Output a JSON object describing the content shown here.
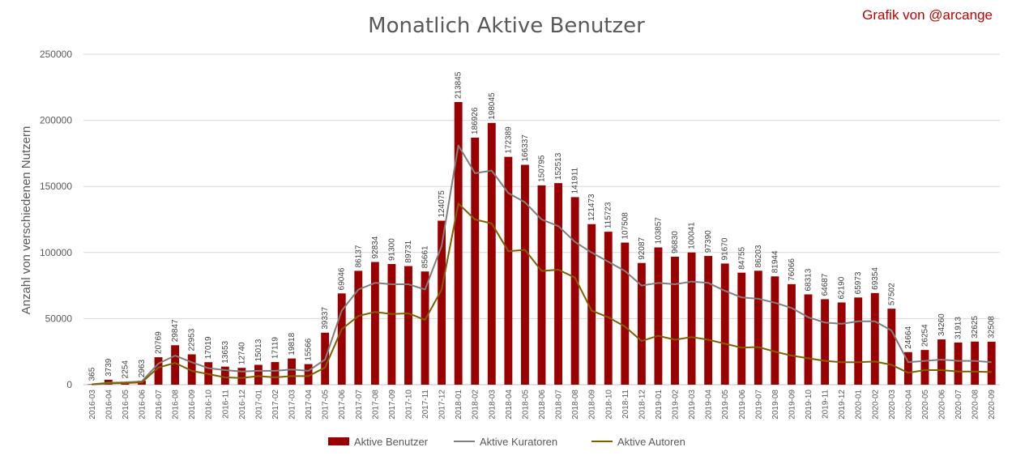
{
  "chart_data": {
    "type": "bar",
    "title": "Monatlich Aktive Benutzer",
    "credit": "Grafik von @arcange",
    "xlabel": "",
    "ylabel": "Anzahl von verschiedenen Nutzern",
    "ylim": [
      0,
      250000
    ],
    "yticks": [
      "0",
      "50000",
      "100000",
      "150000",
      "200000",
      "250000"
    ],
    "grid": true,
    "legend_position": "bottom",
    "categories": [
      "2016-03",
      "2016-04",
      "2016-05",
      "2016-06",
      "2016-07",
      "2016-08",
      "2016-09",
      "2016-10",
      "2016-11",
      "2016-12",
      "2017-01",
      "2017-02",
      "2017-03",
      "2017-04",
      "2017-05",
      "2017-06",
      "2017-07",
      "2017-08",
      "2017-09",
      "2017-10",
      "2017-11",
      "2017-12",
      "2018-01",
      "2018-02",
      "2018-03",
      "2018-04",
      "2018-05",
      "2018-06",
      "2018-07",
      "2018-08",
      "2018-09",
      "2018-10",
      "2018-11",
      "2018-12",
      "2019-01",
      "2019-02",
      "2019-03",
      "2019-04",
      "2019-05",
      "2019-06",
      "2019-07",
      "2019-08",
      "2019-09",
      "2019-10",
      "2019-11",
      "2019-12",
      "2020-01",
      "2020-02",
      "2020-03",
      "2020-04",
      "2020-05",
      "2020-06",
      "2020-07",
      "2020-08",
      "2020-09"
    ],
    "series": [
      {
        "name": "Aktive Benutzer",
        "kind": "bar",
        "color": "#9b0000",
        "values": [
          365,
          3739,
          2254,
          2963,
          20769,
          29847,
          22953,
          17019,
          13653,
          12740,
          15013,
          17119,
          19818,
          15566,
          39337,
          69046,
          86137,
          92834,
          91300,
          89731,
          85661,
          124075,
          213845,
          186926,
          198045,
          172389,
          166337,
          150795,
          152513,
          141911,
          121473,
          115723,
          107508,
          92087,
          103857,
          96830,
          100041,
          97390,
          91670,
          84755,
          86203,
          81944,
          76066,
          68313,
          64687,
          62190,
          65973,
          69354,
          57502,
          24664,
          26254,
          34260,
          31913,
          32625,
          32508
        ]
      },
      {
        "name": "Aktive Kuratoren",
        "kind": "line",
        "color": "#7f7f7f",
        "values": [
          300,
          1500,
          1800,
          2500,
          16000,
          22000,
          17000,
          12500,
          11000,
          10000,
          10500,
          10500,
          11500,
          10500,
          19000,
          56000,
          72000,
          77000,
          76000,
          76000,
          72000,
          105000,
          181000,
          160000,
          162000,
          145000,
          138000,
          125000,
          120000,
          108000,
          100000,
          93000,
          86000,
          75000,
          77000,
          76000,
          78000,
          77000,
          71000,
          66000,
          65000,
          62000,
          58000,
          51000,
          47000,
          46000,
          48000,
          48000,
          41000,
          17000,
          18000,
          19000,
          18000,
          18000,
          17000
        ]
      },
      {
        "name": "Aktive Autoren",
        "kind": "line",
        "color": "#7f6000",
        "values": [
          200,
          1000,
          1200,
          1800,
          13000,
          16500,
          10500,
          8000,
          5500,
          5000,
          6500,
          5500,
          6500,
          6500,
          13000,
          42000,
          52000,
          55000,
          53500,
          54000,
          49000,
          72000,
          137000,
          125000,
          122000,
          101000,
          102000,
          86000,
          87000,
          81000,
          56000,
          51000,
          44000,
          33000,
          37000,
          34000,
          36000,
          34000,
          31000,
          28000,
          28500,
          25000,
          22000,
          20000,
          18000,
          17000,
          17000,
          17500,
          15000,
          9000,
          11000,
          11000,
          10000,
          10000,
          9500
        ]
      }
    ]
  }
}
